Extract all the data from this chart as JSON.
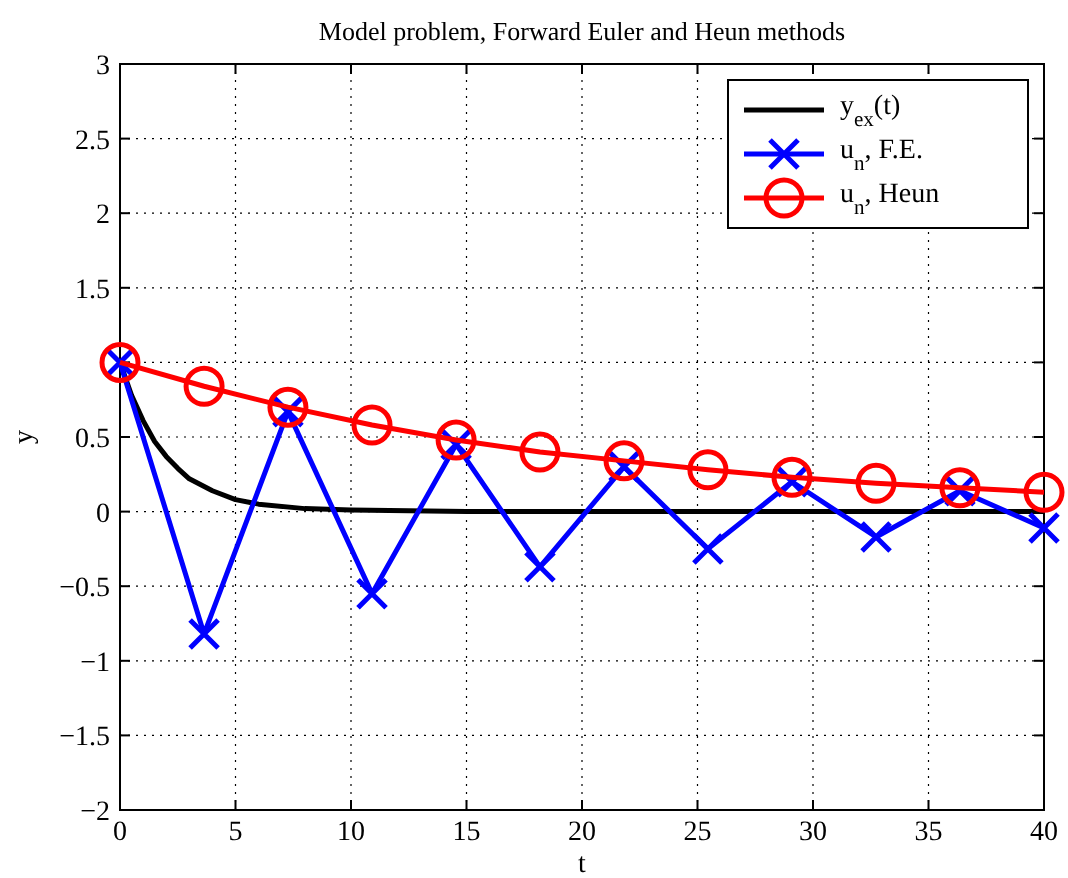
{
  "chart_data": {
    "type": "line",
    "title": "Model problem, Forward Euler and Heun methods",
    "xlabel": "t",
    "ylabel": "y",
    "xlim": [
      0,
      40
    ],
    "ylim": [
      -2,
      3
    ],
    "xticks": [
      0,
      5,
      10,
      15,
      20,
      25,
      30,
      35,
      40
    ],
    "yticks": [
      -2,
      -1.5,
      -1,
      -0.5,
      0,
      0.5,
      {
        "value": 1,
        "label": null
      },
      1.5,
      2,
      2.5,
      3
    ],
    "grid": true,
    "legend": "top right",
    "line_style": "solid",
    "series": [
      {
        "name": "y$_{ex}$(t)",
        "color": "#000000",
        "marker": "none",
        "x": [
          0,
          0.5,
          1,
          1.5,
          2,
          2.5,
          3,
          4,
          5,
          6,
          8,
          10,
          15,
          20,
          30,
          40
        ],
        "values": [
          1,
          0.78,
          0.61,
          0.47,
          0.37,
          0.29,
          0.22,
          0.14,
          0.08,
          0.05,
          0.02,
          0.01,
          0,
          0,
          0,
          0
        ]
      },
      {
        "name": "u$_{n}$, F.E.",
        "color": "#0000ff",
        "marker": "cross",
        "x": [
          0,
          3.64,
          7.27,
          10.91,
          14.55,
          18.18,
          21.82,
          25.45,
          29.09,
          32.73,
          36.36,
          40
        ],
        "values": [
          1,
          -0.82,
          0.67,
          -0.55,
          0.45,
          -0.37,
          0.3,
          -0.25,
          0.2,
          -0.17,
          0.14,
          -0.11
        ]
      },
      {
        "name": "u$_{n}$, Heun",
        "color": "#ff0000",
        "marker": "circle",
        "x": [
          0,
          3.64,
          7.27,
          10.91,
          14.55,
          18.18,
          21.82,
          25.45,
          29.09,
          32.73,
          36.36,
          40
        ],
        "values": [
          1,
          0.84,
          0.7,
          0.58,
          0.48,
          0.4,
          0.34,
          0.28,
          0.23,
          0.19,
          0.16,
          0.13
        ]
      }
    ]
  }
}
